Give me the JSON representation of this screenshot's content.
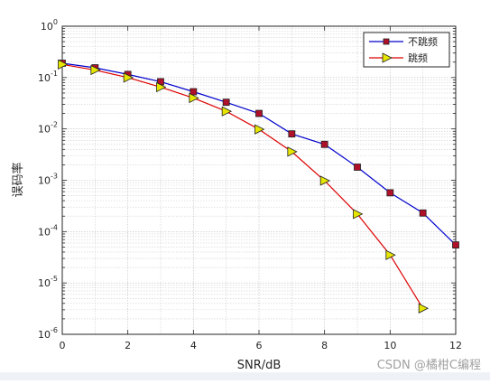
{
  "chart_data": {
    "type": "line",
    "title": "",
    "xlabel": "SNR/dB",
    "ylabel": "误码率",
    "xlim": [
      0,
      12
    ],
    "ylim_exponent": [
      -6,
      0
    ],
    "yscale": "log",
    "grid": true,
    "minor_grid": true,
    "legend_position": "top-right",
    "x_ticks": [
      "0",
      "2",
      "4",
      "6",
      "8",
      "10",
      "12"
    ],
    "y_ticks": [
      {
        "base": "10",
        "exp": "-6"
      },
      {
        "base": "10",
        "exp": "-5"
      },
      {
        "base": "10",
        "exp": "-4"
      },
      {
        "base": "10",
        "exp": "-3"
      },
      {
        "base": "10",
        "exp": "-2"
      },
      {
        "base": "10",
        "exp": "-1"
      },
      {
        "base": "10",
        "exp": "0"
      }
    ],
    "series": [
      {
        "name": "不跳频",
        "color": "#0000cc",
        "marker": "square",
        "marker_fill": "#b0102a",
        "x": [
          0,
          1,
          2,
          3,
          4,
          5,
          6,
          7,
          8,
          9,
          10,
          11,
          12
        ],
        "y": [
          0.19,
          0.155,
          0.115,
          0.083,
          0.053,
          0.033,
          0.02,
          0.008,
          0.005,
          0.0018,
          0.00057,
          0.00023,
          5.5e-05
        ]
      },
      {
        "name": "跳频",
        "color": "#dd0000",
        "marker": "triangle-right",
        "marker_fill": "#e6e600",
        "x": [
          0,
          1,
          2,
          3,
          4,
          5,
          6,
          7,
          8,
          9,
          10,
          11
        ],
        "y": [
          0.18,
          0.14,
          0.1,
          0.065,
          0.04,
          0.022,
          0.0098,
          0.0036,
          0.00098,
          0.00022,
          3.5e-05,
          3.2e-06
        ]
      }
    ]
  },
  "watermark": "CSDN @橘柑C编程"
}
